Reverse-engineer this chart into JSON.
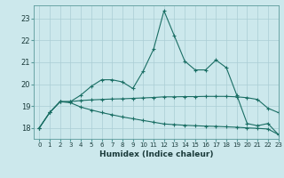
{
  "xlabel": "Humidex (Indice chaleur)",
  "ylabel": "",
  "background_color": "#cce8ec",
  "grid_color": "#aacdd4",
  "line_color": "#1a6e64",
  "xlim": [
    -0.5,
    23
  ],
  "ylim": [
    17.5,
    23.6
  ],
  "yticks": [
    18,
    19,
    20,
    21,
    22,
    23
  ],
  "xticks": [
    0,
    1,
    2,
    3,
    4,
    5,
    6,
    7,
    8,
    9,
    10,
    11,
    12,
    13,
    14,
    15,
    16,
    17,
    18,
    19,
    20,
    21,
    22,
    23
  ],
  "line1_x": [
    0,
    1,
    2,
    3,
    4,
    5,
    6,
    7,
    8,
    9,
    10,
    11,
    12,
    13,
    14,
    15,
    16,
    17,
    18,
    19,
    20,
    21,
    22,
    23
  ],
  "line1_y": [
    18.0,
    18.7,
    19.2,
    19.2,
    19.5,
    19.9,
    20.2,
    20.2,
    20.1,
    19.8,
    20.6,
    21.6,
    23.35,
    22.2,
    21.05,
    20.65,
    20.65,
    21.1,
    20.75,
    19.5,
    18.2,
    18.1,
    18.2,
    17.7
  ],
  "line2_x": [
    0,
    1,
    2,
    3,
    4,
    5,
    6,
    7,
    8,
    9,
    10,
    11,
    12,
    13,
    14,
    15,
    16,
    17,
    18,
    19,
    20,
    21,
    22,
    23
  ],
  "line2_y": [
    18.0,
    18.7,
    19.2,
    19.2,
    19.25,
    19.28,
    19.3,
    19.32,
    19.33,
    19.35,
    19.37,
    19.39,
    19.42,
    19.42,
    19.43,
    19.43,
    19.44,
    19.44,
    19.44,
    19.42,
    19.38,
    19.3,
    18.9,
    18.7
  ],
  "line3_x": [
    0,
    1,
    2,
    3,
    4,
    5,
    6,
    7,
    8,
    9,
    10,
    11,
    12,
    13,
    14,
    15,
    16,
    17,
    18,
    19,
    20,
    21,
    22,
    23
  ],
  "line3_y": [
    18.0,
    18.7,
    19.2,
    19.15,
    18.95,
    18.82,
    18.7,
    18.6,
    18.5,
    18.42,
    18.34,
    18.26,
    18.18,
    18.15,
    18.12,
    18.1,
    18.08,
    18.07,
    18.05,
    18.03,
    18.0,
    17.98,
    17.95,
    17.7
  ]
}
